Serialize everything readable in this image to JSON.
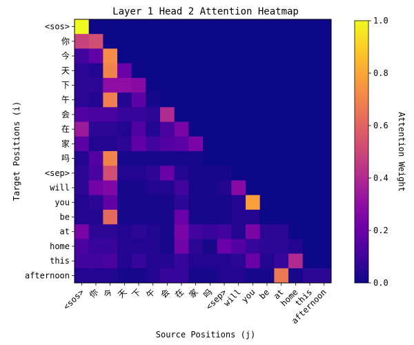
{
  "chart_data": {
    "type": "heatmap",
    "title": "Layer 1 Head 2 Attention Heatmap",
    "xlabel": "Source Positions (j)",
    "ylabel": "Target Positions (i)",
    "colorbar_label": "Attention Weight",
    "colormap": "plasma",
    "vmin": 0.0,
    "vmax": 1.0,
    "colorbar_ticks": [
      "0.0",
      "0.2",
      "0.4",
      "0.6",
      "0.8",
      "1.0"
    ],
    "tokens": [
      "<sos>",
      "你",
      "今",
      "天",
      "下",
      "午",
      "会",
      "在",
      "家",
      "吗",
      "<sep>",
      "will",
      "you",
      "be",
      "at",
      "home",
      "this",
      "afternoon"
    ],
    "values": [
      [
        1.0,
        0.0,
        0.0,
        0.0,
        0.0,
        0.0,
        0.0,
        0.0,
        0.0,
        0.0,
        0.0,
        0.0,
        0.0,
        0.0,
        0.0,
        0.0,
        0.0,
        0.0
      ],
      [
        0.48,
        0.52,
        0.0,
        0.0,
        0.0,
        0.0,
        0.0,
        0.0,
        0.0,
        0.0,
        0.0,
        0.0,
        0.0,
        0.0,
        0.0,
        0.0,
        0.0,
        0.0
      ],
      [
        0.1,
        0.18,
        0.72,
        0.0,
        0.0,
        0.0,
        0.0,
        0.0,
        0.0,
        0.0,
        0.0,
        0.0,
        0.0,
        0.0,
        0.0,
        0.0,
        0.0,
        0.0
      ],
      [
        0.06,
        0.04,
        0.7,
        0.2,
        0.0,
        0.0,
        0.0,
        0.0,
        0.0,
        0.0,
        0.0,
        0.0,
        0.0,
        0.0,
        0.0,
        0.0,
        0.0,
        0.0
      ],
      [
        0.06,
        0.06,
        0.3,
        0.3,
        0.28,
        0.0,
        0.0,
        0.0,
        0.0,
        0.0,
        0.0,
        0.0,
        0.0,
        0.0,
        0.0,
        0.0,
        0.0,
        0.0
      ],
      [
        0.06,
        0.04,
        0.68,
        0.04,
        0.16,
        0.02,
        0.0,
        0.0,
        0.0,
        0.0,
        0.0,
        0.0,
        0.0,
        0.0,
        0.0,
        0.0,
        0.0,
        0.0
      ],
      [
        0.14,
        0.12,
        0.12,
        0.08,
        0.08,
        0.06,
        0.4,
        0.0,
        0.0,
        0.0,
        0.0,
        0.0,
        0.0,
        0.0,
        0.0,
        0.0,
        0.0,
        0.0
      ],
      [
        0.34,
        0.06,
        0.06,
        0.04,
        0.14,
        0.04,
        0.12,
        0.24,
        0.0,
        0.0,
        0.0,
        0.0,
        0.0,
        0.0,
        0.0,
        0.0,
        0.0,
        0.0
      ],
      [
        0.16,
        0.04,
        0.04,
        0.06,
        0.18,
        0.1,
        0.14,
        0.16,
        0.24,
        0.0,
        0.0,
        0.0,
        0.0,
        0.0,
        0.0,
        0.0,
        0.0,
        0.0
      ],
      [
        0.04,
        0.14,
        0.7,
        0.02,
        0.02,
        0.02,
        0.02,
        0.02,
        0.02,
        0.0,
        0.0,
        0.0,
        0.0,
        0.0,
        0.0,
        0.0,
        0.0,
        0.0
      ],
      [
        0.06,
        0.12,
        0.52,
        0.04,
        0.04,
        0.06,
        0.2,
        0.04,
        0.02,
        0.02,
        0.02,
        0.0,
        0.0,
        0.0,
        0.0,
        0.0,
        0.0,
        0.0
      ],
      [
        0.06,
        0.22,
        0.26,
        0.02,
        0.02,
        0.04,
        0.04,
        0.1,
        0.02,
        0.02,
        0.04,
        0.28,
        0.0,
        0.0,
        0.0,
        0.0,
        0.0,
        0.0
      ],
      [
        0.04,
        0.06,
        0.18,
        0.02,
        0.02,
        0.02,
        0.02,
        0.06,
        0.02,
        0.02,
        0.02,
        0.04,
        0.78,
        0.0,
        0.0,
        0.0,
        0.0,
        0.0
      ],
      [
        0.04,
        0.04,
        0.62,
        0.02,
        0.02,
        0.02,
        0.02,
        0.2,
        0.02,
        0.02,
        0.02,
        0.04,
        0.04,
        0.0,
        0.0,
        0.0,
        0.0,
        0.0
      ],
      [
        0.24,
        0.06,
        0.06,
        0.04,
        0.06,
        0.04,
        0.02,
        0.24,
        0.1,
        0.08,
        0.1,
        0.04,
        0.24,
        0.06,
        0.06,
        0.0,
        0.0,
        0.0
      ],
      [
        0.12,
        0.08,
        0.08,
        0.04,
        0.04,
        0.04,
        0.02,
        0.22,
        0.06,
        0.02,
        0.2,
        0.14,
        0.08,
        0.06,
        0.06,
        0.04,
        0.0,
        0.0
      ],
      [
        0.1,
        0.1,
        0.12,
        0.04,
        0.08,
        0.04,
        0.04,
        0.08,
        0.04,
        0.04,
        0.04,
        0.06,
        0.2,
        0.04,
        0.08,
        0.4,
        0.0,
        0.0
      ],
      [
        0.04,
        0.04,
        0.04,
        0.02,
        0.02,
        0.04,
        0.08,
        0.08,
        0.02,
        0.02,
        0.04,
        0.04,
        0.02,
        0.02,
        0.66,
        0.02,
        0.06,
        0.06
      ]
    ]
  }
}
